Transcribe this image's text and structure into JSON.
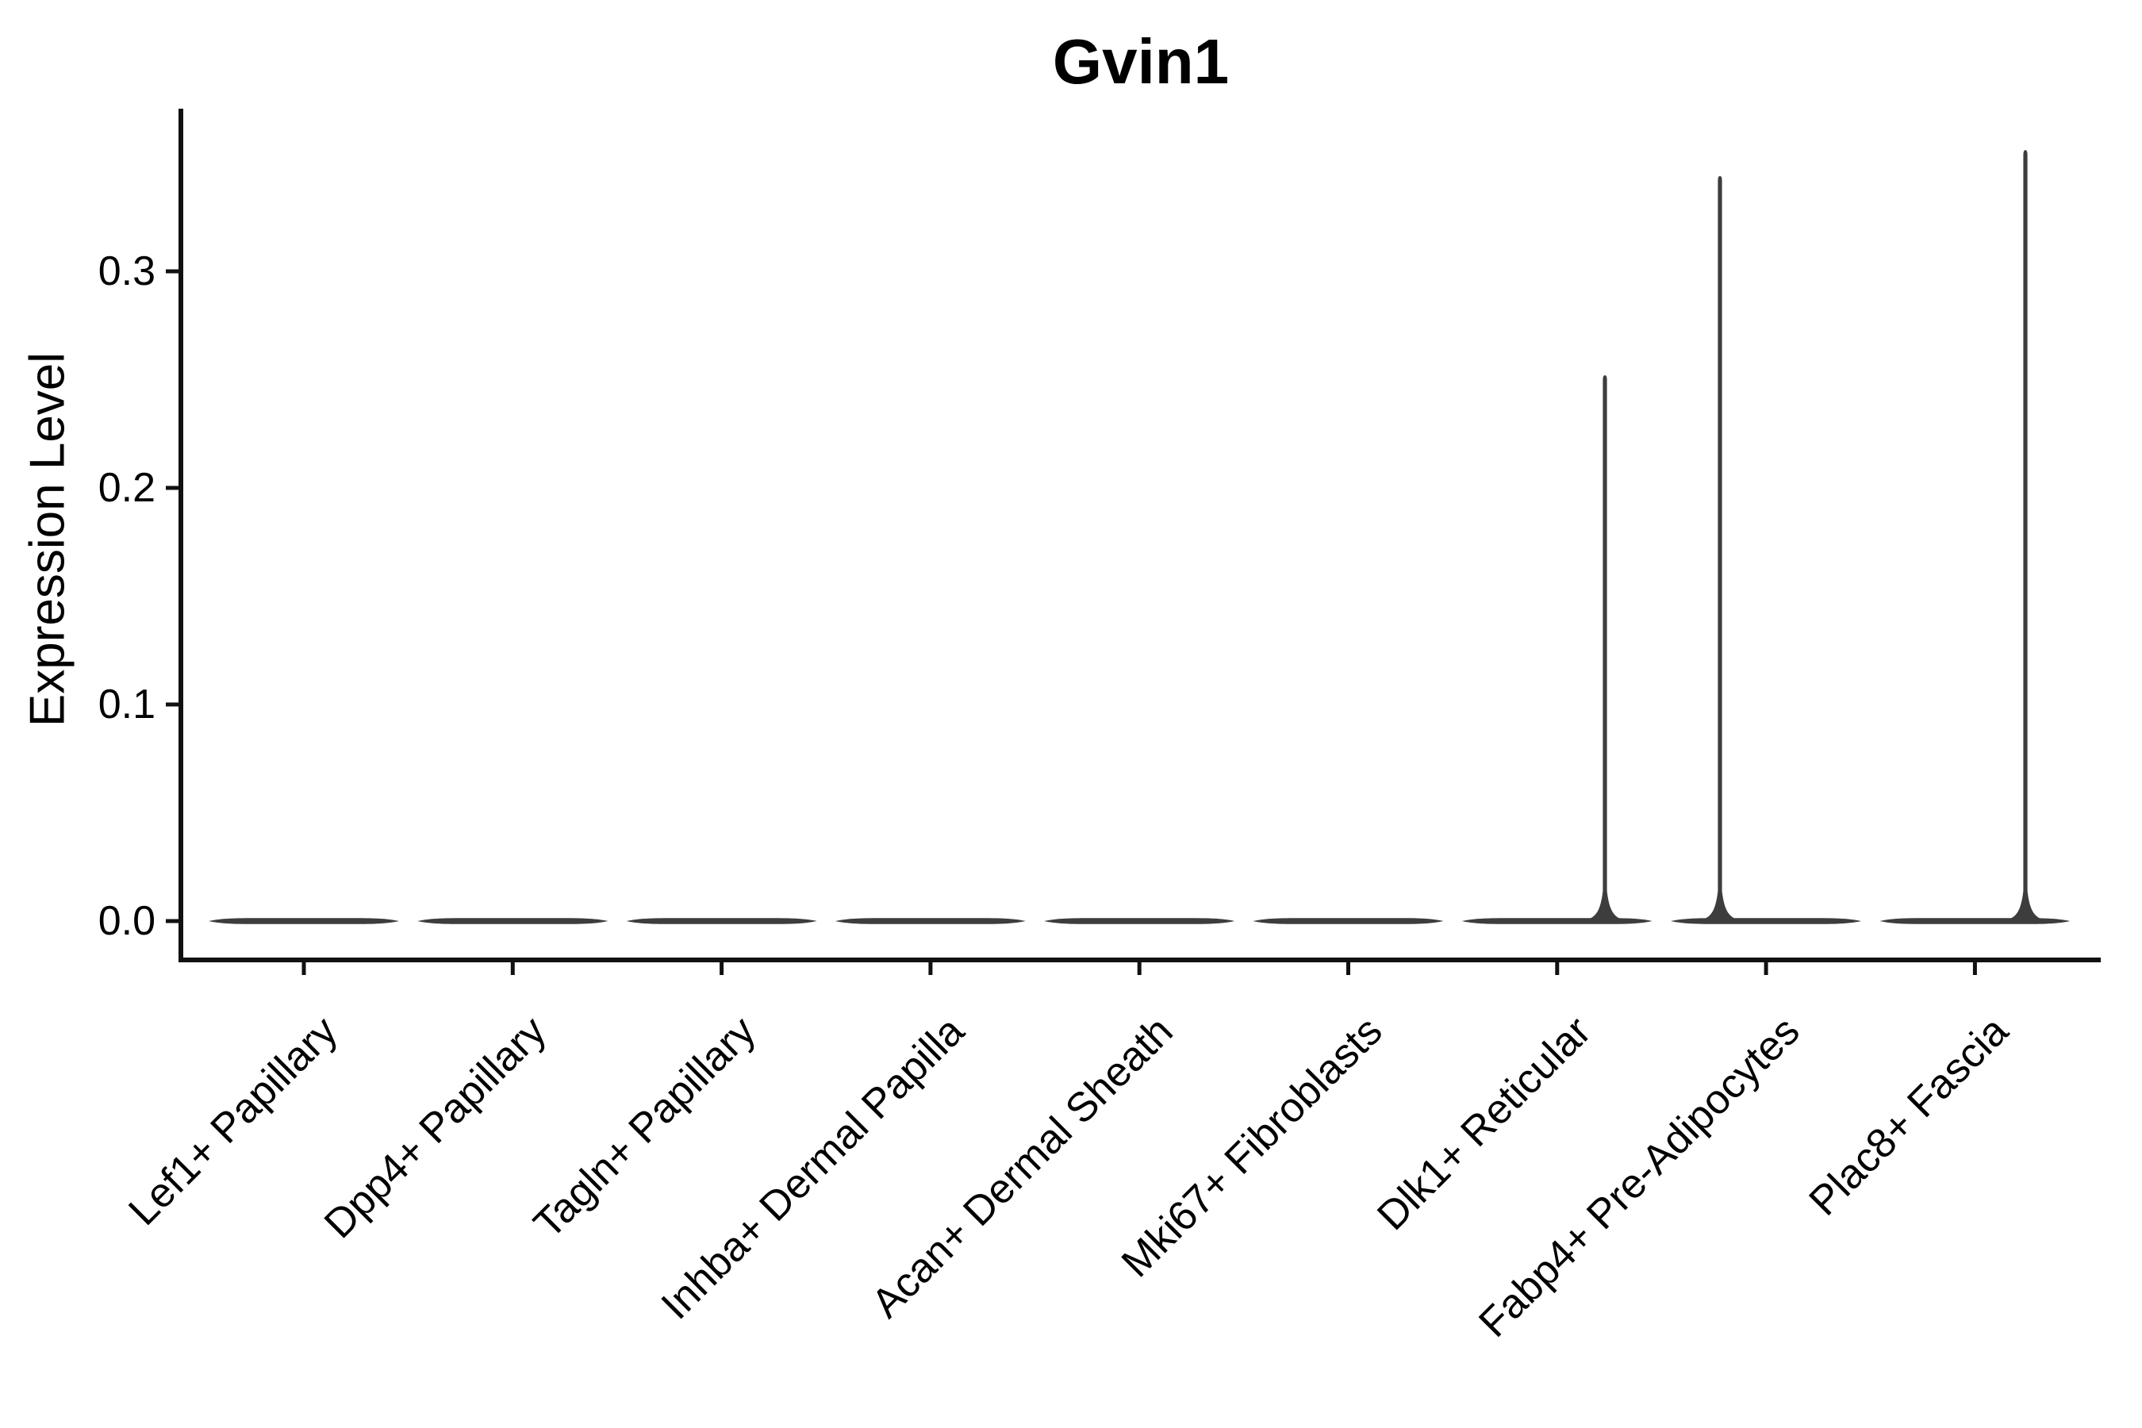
{
  "chart_data": {
    "type": "violin",
    "title": "Gvin1",
    "xlabel": "",
    "ylabel": "Expression Level",
    "categories": [
      "Lef1+ Papillary",
      "Dpp4+ Papillary",
      "Tagln+ Papillary",
      "Inhba+ Dermal Papilla",
      "Acan+ Dermal Sheath",
      "Mki67+ Fibroblasts",
      "Dlk1+ Reticular",
      "Fabp4+ Pre-Adipocytes",
      "Plac8+ Fascia"
    ],
    "series": [
      {
        "name": "Gvin1 expression",
        "max_values": [
          0,
          0,
          0,
          0,
          0,
          0,
          0.252,
          0.344,
          0.356
        ],
        "note": "Density is concentrated at 0 for every cluster (flat violins at y=0); Dlk1+ Reticular, Fabp4+ Pre-Adipocytes and Plac8+ Fascia each show a single thin spike up to the listed maximum expression value."
      }
    ],
    "yticks": [
      0.0,
      0.1,
      0.2,
      0.3
    ],
    "ytick_labels": [
      "0.0",
      "0.1",
      "0.2",
      "0.3"
    ],
    "ylim": [
      -0.018,
      0.375
    ],
    "grid": false,
    "legend": "none",
    "x_tick_rotation_deg": 45,
    "colors": {
      "violin": "#3d3d3d",
      "axis": "#111111",
      "text": "#000000",
      "background": "#ffffff"
    }
  }
}
